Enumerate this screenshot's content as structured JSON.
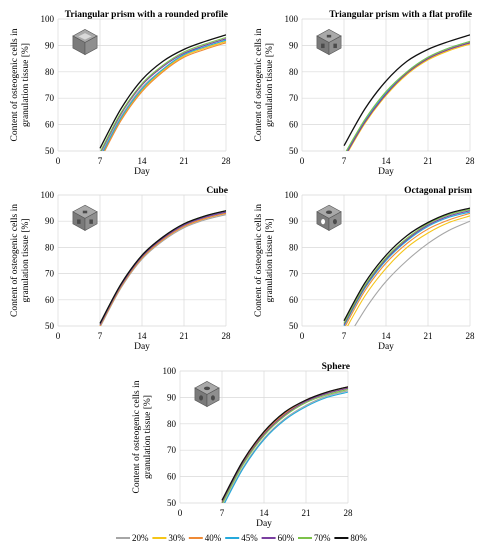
{
  "figure": {
    "legend_placement": "bottom-center",
    "series_styles": [
      {
        "name": "20%",
        "color": "#a6a6a6"
      },
      {
        "name": "30%",
        "color": "#f5c518"
      },
      {
        "name": "40%",
        "color": "#ef8a35"
      },
      {
        "name": "45%",
        "color": "#25a9dc"
      },
      {
        "name": "60%",
        "color": "#7a3fa0"
      },
      {
        "name": "70%",
        "color": "#7cc24a"
      },
      {
        "name": "80%",
        "color": "#111111"
      }
    ]
  },
  "chart_data": [
    {
      "type": "line",
      "title": "Triangular prism with a rounded profile",
      "xlabel": "Day",
      "ylabel": "Content of osteogenic cells in granulation tissue [%]",
      "xlim": [
        0,
        28
      ],
      "ylim": [
        50,
        100
      ],
      "xticks": [
        0,
        7,
        14,
        21,
        28
      ],
      "yticks": [
        50,
        60,
        70,
        80,
        90,
        100
      ],
      "grid": true,
      "icon": "cube-scaffold-icon",
      "series": [
        {
          "name": "20%",
          "x": [
            7,
            10.5,
            14,
            17.5,
            21,
            24.5,
            28
          ],
          "y": [
            48,
            63,
            74,
            81,
            86.5,
            89.5,
            92
          ]
        },
        {
          "name": "30%",
          "x": [
            7,
            10.5,
            14,
            17.5,
            21,
            24.5,
            28
          ],
          "y": [
            47,
            62,
            73,
            80.5,
            86,
            89,
            91.5
          ]
        },
        {
          "name": "40%",
          "x": [
            7,
            10.5,
            14,
            17.5,
            21,
            24.5,
            28
          ],
          "y": [
            46.5,
            61.5,
            72.5,
            80,
            85.5,
            88.5,
            91
          ]
        },
        {
          "name": "45%",
          "x": [
            7,
            10.5,
            14,
            17.5,
            21,
            24.5,
            28
          ],
          "y": [
            47.5,
            62.5,
            73.5,
            81,
            86.5,
            89.5,
            92
          ]
        },
        {
          "name": "60%",
          "x": [
            7,
            10.5,
            14,
            17.5,
            21,
            24.5,
            28
          ],
          "y": [
            49,
            64,
            75,
            82,
            87,
            90,
            92.5
          ]
        },
        {
          "name": "70%",
          "x": [
            7,
            10.5,
            14,
            17.5,
            21,
            24.5,
            28
          ],
          "y": [
            49.5,
            64.5,
            75.5,
            82.5,
            87.5,
            90.5,
            93
          ]
        },
        {
          "name": "80%",
          "x": [
            7,
            10.5,
            14,
            17.5,
            21,
            24.5,
            28
          ],
          "y": [
            51,
            66,
            77,
            84,
            88.5,
            91.5,
            94
          ]
        }
      ]
    },
    {
      "type": "line",
      "title": "Triangular prism with a flat profile",
      "xlabel": "Day",
      "ylabel": "Content of osteogenic cells in granulation tissue [%]",
      "xlim": [
        0,
        28
      ],
      "ylim": [
        50,
        100
      ],
      "xticks": [
        0,
        7,
        14,
        21,
        28
      ],
      "yticks": [
        50,
        60,
        70,
        80,
        90,
        100
      ],
      "grid": true,
      "icon": "cube-scaffold-icon",
      "series": [
        {
          "name": "20%",
          "x": [
            7,
            10.5,
            14,
            17.5,
            21,
            24.5,
            28
          ],
          "y": [
            48,
            61,
            71.5,
            79.5,
            85,
            88.5,
            91
          ]
        },
        {
          "name": "30%",
          "x": [
            7,
            10.5,
            14,
            17.5,
            21,
            24.5,
            28
          ],
          "y": [
            47,
            60.5,
            71,
            79,
            84.5,
            88,
            90.5
          ]
        },
        {
          "name": "40%",
          "x": [
            7,
            10.5,
            14,
            17.5,
            21,
            24.5,
            28
          ],
          "y": [
            47.5,
            61,
            71.5,
            79.5,
            85,
            88.5,
            91
          ]
        },
        {
          "name": "45%",
          "x": [
            7,
            10.5,
            14,
            17.5,
            21,
            24.5,
            28
          ],
          "y": [
            48,
            61.5,
            72,
            80,
            85.5,
            89,
            91.5
          ]
        },
        {
          "name": "60%",
          "x": [
            7,
            10.5,
            14,
            17.5,
            21,
            24.5,
            28
          ],
          "y": [
            47.5,
            61,
            71.5,
            79.5,
            85,
            88.5,
            91
          ]
        },
        {
          "name": "70%",
          "x": [
            7,
            10.5,
            14,
            17.5,
            21,
            24.5,
            28
          ],
          "y": [
            48.5,
            62,
            72.5,
            80,
            85.5,
            89,
            91.5
          ]
        },
        {
          "name": "80%",
          "x": [
            7,
            10.5,
            14,
            17.5,
            21,
            24.5,
            28
          ],
          "y": [
            52,
            66,
            76.5,
            84,
            88.5,
            91.5,
            94
          ]
        }
      ]
    },
    {
      "type": "line",
      "title": "Cube",
      "xlabel": "Day",
      "ylabel": "Content of osteogenic cells in granulation tissue [%]",
      "xlim": [
        0,
        28
      ],
      "ylim": [
        50,
        100
      ],
      "xticks": [
        0,
        7,
        14,
        21,
        28
      ],
      "yticks": [
        50,
        60,
        70,
        80,
        90,
        100
      ],
      "grid": true,
      "icon": "cube-scaffold-icon",
      "series": [
        {
          "name": "20%",
          "x": [
            7,
            10.5,
            14,
            17.5,
            21,
            24.5,
            28
          ],
          "y": [
            49.5,
            64.5,
            75.5,
            82.5,
            87.5,
            90.5,
            92.5
          ]
        },
        {
          "name": "30%",
          "x": [
            7,
            10.5,
            14,
            17.5,
            21,
            24.5,
            28
          ],
          "y": [
            50,
            65,
            76,
            83,
            88,
            91,
            93
          ]
        },
        {
          "name": "40%",
          "x": [
            7,
            10.5,
            14,
            17.5,
            21,
            24.5,
            28
          ],
          "y": [
            50,
            65,
            76,
            83,
            88,
            91,
            93
          ]
        },
        {
          "name": "45%",
          "x": [
            7,
            10.5,
            14,
            17.5,
            21,
            24.5,
            28
          ],
          "y": [
            50.5,
            65.5,
            76.5,
            83.5,
            88.5,
            91.5,
            93.5
          ]
        },
        {
          "name": "60%",
          "x": [
            7,
            10.5,
            14,
            17.5,
            21,
            24.5,
            28
          ],
          "y": [
            50.5,
            65.5,
            76.5,
            83.5,
            88.5,
            91.5,
            93.5
          ]
        },
        {
          "name": "70%",
          "x": [
            7,
            10.5,
            14,
            17.5,
            21,
            24.5,
            28
          ],
          "y": [
            51,
            66,
            77,
            84,
            89,
            92,
            94
          ]
        },
        {
          "name": "80%",
          "x": [
            7,
            10.5,
            14,
            17.5,
            21,
            24.5,
            28
          ],
          "y": [
            51,
            66,
            77,
            84,
            89,
            92,
            94
          ]
        }
      ]
    },
    {
      "type": "line",
      "title": "Octagonal prism",
      "xlabel": "Day",
      "ylabel": "Content of osteogenic cells in granulation tissue [%]",
      "xlim": [
        0,
        28
      ],
      "ylim": [
        50,
        100
      ],
      "xticks": [
        0,
        7,
        14,
        21,
        28
      ],
      "yticks": [
        50,
        60,
        70,
        80,
        90,
        100
      ],
      "grid": true,
      "icon": "cube-scaffold-icon",
      "series": [
        {
          "name": "20%",
          "x": [
            8,
            11,
            14,
            17.5,
            21,
            24.5,
            28
          ],
          "y": [
            47,
            58,
            67,
            75,
            81.5,
            86.5,
            90
          ]
        },
        {
          "name": "30%",
          "x": [
            7,
            10.5,
            14,
            17.5,
            21,
            24.5,
            28
          ],
          "y": [
            47.5,
            61.5,
            72,
            80,
            85.5,
            89.5,
            92
          ]
        },
        {
          "name": "40%",
          "x": [
            7,
            10.5,
            14,
            17.5,
            21,
            24.5,
            28
          ],
          "y": [
            49,
            63.5,
            74,
            81.5,
            87,
            90.5,
            93
          ]
        },
        {
          "name": "45%",
          "x": [
            7,
            10.5,
            14,
            17.5,
            21,
            24.5,
            28
          ],
          "y": [
            50,
            64.5,
            75,
            82.5,
            88,
            91.5,
            93.5
          ]
        },
        {
          "name": "60%",
          "x": [
            7,
            10.5,
            14,
            17.5,
            21,
            24.5,
            28
          ],
          "y": [
            50.5,
            65,
            75.5,
            83,
            88.5,
            92,
            94
          ]
        },
        {
          "name": "70%",
          "x": [
            7,
            10.5,
            14,
            17.5,
            21,
            24.5,
            28
          ],
          "y": [
            51,
            65.5,
            76,
            83.5,
            89,
            92.5,
            94.5
          ]
        },
        {
          "name": "80%",
          "x": [
            7,
            10.5,
            14,
            17.5,
            21,
            24.5,
            28
          ],
          "y": [
            52,
            66.5,
            77,
            84.5,
            89.5,
            93,
            95
          ]
        }
      ]
    },
    {
      "type": "line",
      "title": "Sphere",
      "xlabel": "Day",
      "ylabel": "Content of osteogenic cells in granulation tissue [%]",
      "xlim": [
        0,
        28
      ],
      "ylim": [
        50,
        100
      ],
      "xticks": [
        0,
        7,
        14,
        21,
        28
      ],
      "yticks": [
        50,
        60,
        70,
        80,
        90,
        100
      ],
      "grid": true,
      "icon": "cube-scaffold-icon",
      "series": [
        {
          "name": "20%",
          "x": [
            7,
            10.5,
            14,
            17.5,
            21,
            24.5,
            28
          ],
          "y": [
            48.5,
            63.5,
            74.5,
            82,
            87,
            90.5,
            92.5
          ]
        },
        {
          "name": "30%",
          "x": [
            7,
            10.5,
            14,
            17.5,
            21,
            24.5,
            28
          ],
          "y": [
            50,
            65,
            76,
            83.5,
            88.5,
            91.5,
            93.5
          ]
        },
        {
          "name": "40%",
          "x": [
            7,
            10.5,
            14,
            17.5,
            21,
            24.5,
            28
          ],
          "y": [
            50.5,
            65.5,
            76.5,
            84,
            89,
            92,
            94
          ]
        },
        {
          "name": "45%",
          "x": [
            7,
            10.5,
            14,
            17.5,
            21,
            24.5,
            28
          ],
          "y": [
            48,
            63,
            74,
            81.5,
            86.5,
            90,
            92
          ]
        },
        {
          "name": "60%",
          "x": [
            7,
            10.5,
            14,
            17.5,
            21,
            24.5,
            28
          ],
          "y": [
            50,
            65,
            76,
            83.5,
            88.5,
            91.5,
            93.5
          ]
        },
        {
          "name": "70%",
          "x": [
            7,
            10.5,
            14,
            17.5,
            21,
            24.5,
            28
          ],
          "y": [
            49.5,
            64.5,
            75.5,
            83,
            88,
            91,
            93
          ]
        },
        {
          "name": "80%",
          "x": [
            7,
            10.5,
            14,
            17.5,
            21,
            24.5,
            28
          ],
          "y": [
            51,
            66,
            77,
            84.5,
            89,
            92,
            94
          ]
        }
      ]
    }
  ]
}
